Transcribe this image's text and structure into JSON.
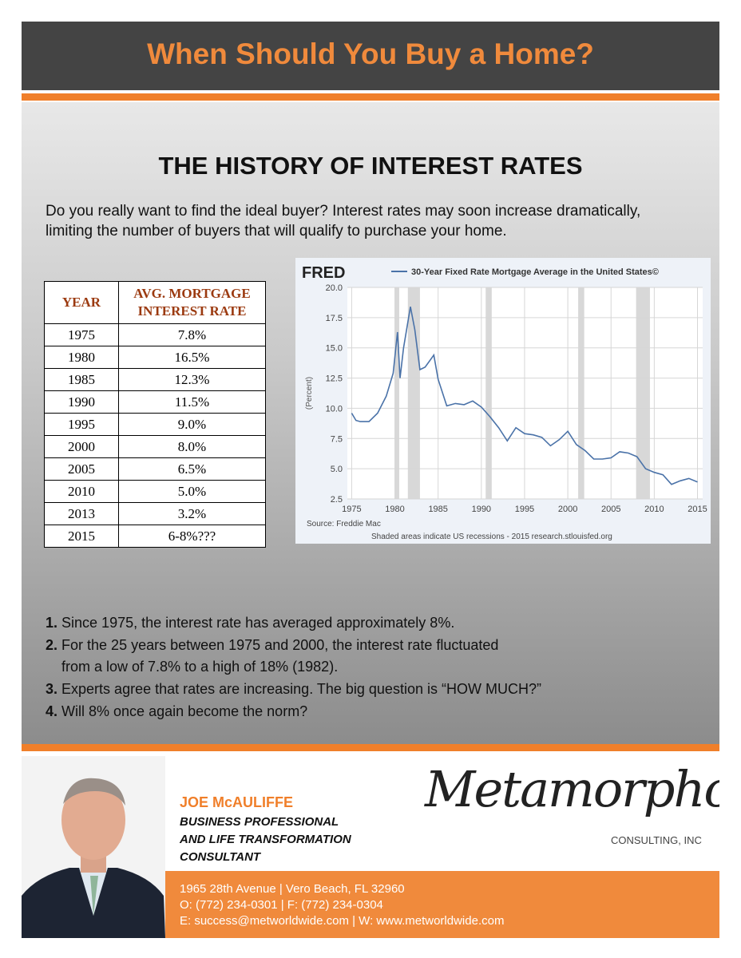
{
  "header": {
    "title": "When Should You Buy a Home?"
  },
  "section": {
    "heading": "THE HISTORY OF INTEREST RATES",
    "intro": "Do you really want to find the ideal buyer? Interest rates may soon increase dramatically, limiting the number of buyers that will qualify to purchase your home."
  },
  "table": {
    "headers": [
      "YEAR",
      "AVG. MORTGAGE INTEREST RATE"
    ],
    "rows": [
      [
        "1975",
        "7.8%"
      ],
      [
        "1980",
        "16.5%"
      ],
      [
        "1985",
        "12.3%"
      ],
      [
        "1990",
        "11.5%"
      ],
      [
        "1995",
        "9.0%"
      ],
      [
        "2000",
        "8.0%"
      ],
      [
        "2005",
        "6.5%"
      ],
      [
        "2010",
        "5.0%"
      ],
      [
        "2013",
        "3.2%"
      ],
      [
        "2015",
        "6-8%???"
      ]
    ]
  },
  "chart_data": {
    "type": "line",
    "logo": "FRED",
    "y_label": "(Percent)",
    "source": "Source: Freddie Mac",
    "note": "Shaded areas indicate US recessions - 2015 research.stlouisfed.org",
    "recessions": [
      [
        1980.0,
        1980.5
      ],
      [
        1981.5,
        1982.9
      ],
      [
        1990.5,
        1991.2
      ],
      [
        2001.2,
        2001.9
      ],
      [
        2007.9,
        2009.5
      ]
    ],
    "x": [
      1975,
      1975.5,
      1976,
      1977,
      1978,
      1979,
      1979.8,
      1980.3,
      1980.6,
      1981,
      1981.8,
      1982.3,
      1982.9,
      1983.5,
      1984.5,
      1985,
      1986,
      1987,
      1988,
      1989,
      1990,
      1991,
      1992,
      1993,
      1994,
      1995,
      1996,
      1997,
      1998,
      1999,
      2000,
      2001,
      2002,
      2003,
      2004,
      2005,
      2006,
      2007,
      2008,
      2009,
      2010,
      2011,
      2012,
      2013,
      2014,
      2015
    ],
    "series": [
      {
        "name": "30-Year Fixed Rate Mortgage Average in the United States©",
        "color": "#4a72a8",
        "values": [
          9.6,
          9.0,
          8.9,
          8.9,
          9.6,
          11.0,
          12.9,
          16.3,
          12.5,
          15.0,
          18.4,
          16.5,
          13.2,
          13.4,
          14.4,
          12.4,
          10.2,
          10.4,
          10.3,
          10.6,
          10.1,
          9.3,
          8.4,
          7.3,
          8.4,
          7.9,
          7.8,
          7.6,
          6.9,
          7.4,
          8.1,
          7.0,
          6.5,
          5.8,
          5.8,
          5.9,
          6.4,
          6.3,
          6.0,
          5.0,
          4.7,
          4.5,
          3.7,
          4.0,
          4.2,
          3.9
        ]
      }
    ],
    "xlim": [
      1974.5,
      2015.6
    ],
    "xticks": [
      1975,
      1980,
      1985,
      1990,
      1995,
      2000,
      2005,
      2010,
      2015
    ],
    "ylim": [
      2.5,
      20
    ],
    "yticks": [
      2.5,
      {
        "value": 5,
        "label": "5.0"
      },
      7.5,
      {
        "value": 10,
        "label": "10.0"
      },
      12.5,
      {
        "value": 15,
        "label": "15.0"
      },
      17.5,
      {
        "value": 20,
        "label": "20.0"
      }
    ],
    "grid": true
  },
  "points": [
    {
      "num": "1.",
      "text": "Since 1975, the interest rate has averaged approximately 8%."
    },
    {
      "num": "2.",
      "text": "For the 25 years between 1975 and 2000, the interest rate fluctuated",
      "text2": "from a low  of  7.8% to a high of 18% (1982)."
    },
    {
      "num": "3.",
      "text": "Experts agree that rates are increasing. The big question is “HOW MUCH?”"
    },
    {
      "num": "4.",
      "text": "Will 8% once again become the norm?"
    }
  ],
  "contact": {
    "name": "JOE McAULIFFE",
    "role": [
      "BUSINESS PROFESSIONAL",
      "AND LIFE TRANSFORMATION",
      "CONSULTANT"
    ],
    "address": "1965 28th Avenue | Vero Beach, FL 32960",
    "phone": "O: (772) 234-0301 | F: (772) 234-0304",
    "web": "E: success@metworldwide.com | W: www.metworldwide.com"
  },
  "brand": {
    "name": "Metamorphosis",
    "sub": "CONSULTING, INC"
  }
}
